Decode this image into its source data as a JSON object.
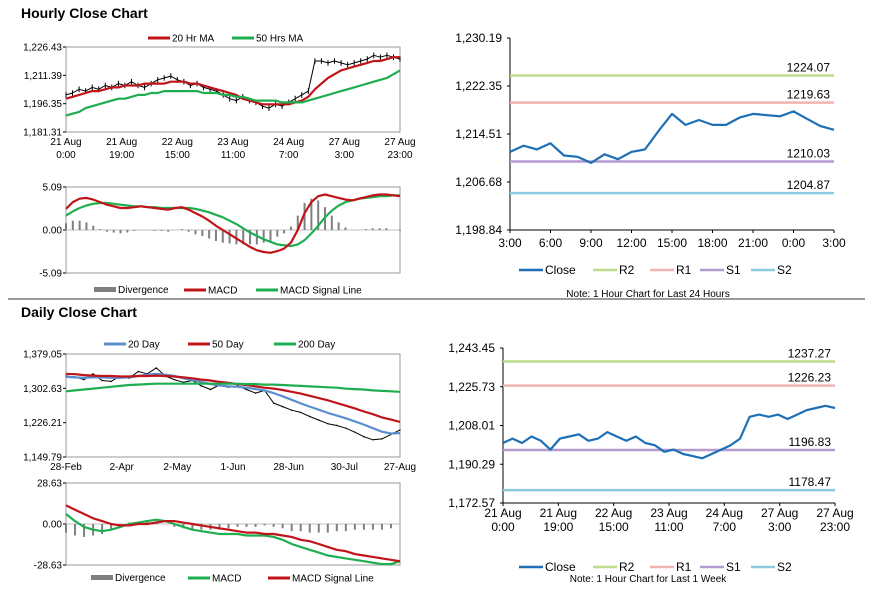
{
  "sections": {
    "hourly_title": "Hourly Close Chart",
    "daily_title": "Daily Close Chart"
  },
  "colors": {
    "ma_short": "#c0141a",
    "ma_long": "#1fae4f",
    "ma_mid": "#5b8fd0",
    "close": "#1f6fb5",
    "r2": "#bcdc8c",
    "r1": "#f1b4b4",
    "s1": "#b59ad0",
    "s2": "#8ccbdf",
    "divergence": "#7f7f7f",
    "price": "#000000"
  },
  "chart_data": [
    {
      "id": "hourly_price",
      "type": "line",
      "legend": [
        "20 Hr MA",
        "50 Hrs MA"
      ],
      "y_ticks": [
        "1,226.43",
        "1,211.39",
        "1,196.35",
        "1,181.31"
      ],
      "ylim": [
        1181.31,
        1226.43
      ],
      "x_labels": [
        [
          "21 Aug",
          "0:00"
        ],
        [
          "21 Aug",
          "19:00"
        ],
        [
          "22 Aug",
          "15:00"
        ],
        [
          "23 Aug",
          "11:00"
        ],
        [
          "24 Aug",
          "7:00"
        ],
        [
          "27 Aug",
          "3:00"
        ],
        [
          "27 Aug",
          "23:00"
        ]
      ],
      "series": [
        {
          "name": "Close",
          "values": [
            1201,
            1202,
            1204,
            1203,
            1205,
            1204,
            1206,
            1205,
            1207,
            1206,
            1208,
            1206,
            1205,
            1207,
            1209,
            1210,
            1211,
            1209,
            1208,
            1206,
            1207,
            1205,
            1204,
            1203,
            1201,
            1199,
            1198,
            1200,
            1198,
            1197,
            1195,
            1194,
            1196,
            1195,
            1197,
            1199,
            1201,
            1203,
            1219,
            1219,
            1218,
            1219,
            1218,
            1217,
            1218,
            1219,
            1220,
            1222,
            1221,
            1222,
            1221,
            1220
          ]
        },
        {
          "name": "20 Hr MA",
          "values": [
            1199,
            1200,
            1201,
            1202,
            1203,
            1203,
            1204,
            1205,
            1205,
            1206,
            1206,
            1206,
            1207,
            1207,
            1207,
            1207,
            1208,
            1208,
            1208,
            1207,
            1207,
            1206,
            1205,
            1204,
            1203,
            1202,
            1201,
            1199,
            1198,
            1197,
            1196,
            1196,
            1196,
            1196,
            1196,
            1197,
            1198,
            1200,
            1204,
            1207,
            1210,
            1212,
            1214,
            1215,
            1216,
            1217,
            1218,
            1219,
            1219,
            1220,
            1221,
            1221
          ]
        },
        {
          "name": "50 Hrs MA",
          "values": [
            1190,
            1191,
            1192,
            1194,
            1195,
            1196,
            1197,
            1198,
            1199,
            1199,
            1200,
            1201,
            1201,
            1202,
            1202,
            1203,
            1203,
            1203,
            1203,
            1203,
            1203,
            1202,
            1202,
            1202,
            1201,
            1201,
            1200,
            1200,
            1199,
            1198,
            1198,
            1198,
            1198,
            1197,
            1197,
            1197,
            1197,
            1198,
            1199,
            1200,
            1201,
            1202,
            1203,
            1204,
            1205,
            1206,
            1207,
            1208,
            1209,
            1210,
            1212,
            1214
          ]
        }
      ]
    },
    {
      "id": "hourly_macd",
      "type": "line",
      "legend": [
        "Divergence",
        "MACD",
        "MACD Signal Line"
      ],
      "y_ticks": [
        "5.09",
        "0.00",
        "-5.09"
      ],
      "ylim": [
        -5.09,
        5.09
      ],
      "series": [
        {
          "name": "MACD",
          "values": [
            2.5,
            3.3,
            3.7,
            3.8,
            3.6,
            3.3,
            3.0,
            2.8,
            2.6,
            2.6,
            2.7,
            2.8,
            2.7,
            2.6,
            2.5,
            2.4,
            2.6,
            2.7,
            2.4,
            2.0,
            1.6,
            1.1,
            0.5,
            0.0,
            -0.5,
            -1.0,
            -1.5,
            -2.0,
            -2.4,
            -2.6,
            -2.7,
            -2.5,
            -2.2,
            -1.5,
            0.0,
            2.0,
            3.3,
            4.0,
            4.2,
            4.0,
            3.8,
            3.6,
            3.5,
            3.7,
            3.9,
            4.1,
            4.2,
            4.2,
            4.1,
            4.0
          ]
        },
        {
          "name": "MACD Signal Line",
          "values": [
            1.7,
            2.2,
            2.6,
            2.9,
            3.1,
            3.2,
            3.2,
            3.1,
            3.0,
            2.9,
            2.8,
            2.8,
            2.7,
            2.7,
            2.6,
            2.6,
            2.6,
            2.6,
            2.6,
            2.5,
            2.3,
            2.1,
            1.8,
            1.5,
            1.1,
            0.7,
            0.2,
            -0.3,
            -0.7,
            -1.1,
            -1.4,
            -1.7,
            -1.8,
            -1.9,
            -1.7,
            -1.2,
            -0.4,
            0.5,
            1.5,
            2.3,
            2.9,
            3.3,
            3.5,
            3.7,
            3.8,
            3.9,
            4.0,
            4.0,
            4.1,
            4.1
          ]
        },
        {
          "name": "Divergence",
          "values": [
            0.8,
            1.1,
            1.1,
            0.9,
            0.5,
            0.1,
            -0.2,
            -0.3,
            -0.4,
            -0.3,
            -0.1,
            0.0,
            0.0,
            -0.1,
            -0.1,
            -0.2,
            0.0,
            0.1,
            -0.2,
            -0.5,
            -0.7,
            -1.0,
            -1.3,
            -1.5,
            -1.6,
            -1.7,
            -1.7,
            -1.7,
            -1.7,
            -1.5,
            -1.3,
            -0.8,
            -0.4,
            0.4,
            1.7,
            3.2,
            3.7,
            3.5,
            2.7,
            1.7,
            0.9,
            0.3,
            0.0,
            0.0,
            0.1,
            0.2,
            0.2,
            0.2,
            0.0,
            -0.1
          ]
        }
      ]
    },
    {
      "id": "hourly_levels",
      "type": "line",
      "y_ticks": [
        "1,230.19",
        "1,222.35",
        "1,214.51",
        "1,206.68",
        "1,198.84"
      ],
      "ylim": [
        1198.84,
        1230.19
      ],
      "x_labels": [
        "3:00",
        "6:00",
        "9:00",
        "12:00",
        "15:00",
        "18:00",
        "21:00",
        "0:00",
        "3:00"
      ],
      "levels": [
        {
          "name": "R2",
          "value": 1224.07,
          "label": "1224.07"
        },
        {
          "name": "R1",
          "value": 1219.63,
          "label": "1219.63"
        },
        {
          "name": "S1",
          "value": 1210.03,
          "label": "1210.03"
        },
        {
          "name": "S2",
          "value": 1204.87,
          "label": "1204.87"
        }
      ],
      "series": [
        {
          "name": "Close",
          "values": [
            1211.6,
            1212.6,
            1212.0,
            1213.0,
            1211.0,
            1210.8,
            1209.8,
            1211.2,
            1210.4,
            1211.6,
            1212.0,
            1215.0,
            1217.8,
            1216.0,
            1216.8,
            1216.0,
            1216.0,
            1217.2,
            1217.8,
            1217.6,
            1217.4,
            1218.2,
            1217.0,
            1215.8,
            1215.2
          ]
        }
      ],
      "legend": [
        "Close",
        "R2",
        "R1",
        "S1",
        "S2"
      ],
      "note": "Note: 1 Hour Chart for Last 24 Hours"
    },
    {
      "id": "daily_price",
      "type": "line",
      "legend": [
        "20 Day",
        "50 Day",
        "200 Day"
      ],
      "y_ticks": [
        "1,379.05",
        "1,302.63",
        "1,226.21",
        "1,149.79"
      ],
      "ylim": [
        1149.79,
        1379.05
      ],
      "x_labels": [
        "28-Feb",
        "2-Apr",
        "2-May",
        "1-Jun",
        "28-Jun",
        "30-Jul",
        "27-Aug"
      ],
      "series": [
        {
          "name": "Close",
          "values": [
            1330,
            1328,
            1322,
            1335,
            1320,
            1318,
            1330,
            1325,
            1340,
            1335,
            1348,
            1330,
            1322,
            1316,
            1320,
            1308,
            1300,
            1310,
            1305,
            1308,
            1300,
            1292,
            1298,
            1270,
            1262,
            1254,
            1249,
            1240,
            1232,
            1224,
            1220,
            1214,
            1205,
            1195,
            1188,
            1190,
            1200,
            1210
          ]
        },
        {
          "name": "20 Day",
          "values": [
            1328,
            1327,
            1326,
            1327,
            1327,
            1326,
            1326,
            1327,
            1330,
            1333,
            1335,
            1333,
            1330,
            1325,
            1321,
            1317,
            1312,
            1309,
            1307,
            1306,
            1304,
            1301,
            1298,
            1292,
            1285,
            1277,
            1269,
            1262,
            1255,
            1248,
            1242,
            1236,
            1229,
            1222,
            1214,
            1206,
            1202,
            1203
          ]
        },
        {
          "name": "50 Day",
          "values": [
            1335,
            1334,
            1332,
            1331,
            1330,
            1330,
            1329,
            1329,
            1330,
            1330,
            1331,
            1330,
            1329,
            1327,
            1325,
            1322,
            1320,
            1317,
            1315,
            1312,
            1310,
            1307,
            1304,
            1302,
            1299,
            1295,
            1291,
            1286,
            1281,
            1276,
            1270,
            1264,
            1258,
            1251,
            1245,
            1238,
            1233,
            1228
          ]
        },
        {
          "name": "200 Day",
          "values": [
            1296,
            1298,
            1300,
            1302,
            1304,
            1306,
            1308,
            1310,
            1311,
            1312,
            1313,
            1313,
            1313,
            1313,
            1313,
            1313,
            1313,
            1313,
            1313,
            1313,
            1312,
            1312,
            1311,
            1311,
            1310,
            1309,
            1308,
            1307,
            1306,
            1305,
            1304,
            1302,
            1301,
            1300,
            1298,
            1297,
            1296,
            1295
          ]
        }
      ]
    },
    {
      "id": "daily_macd",
      "type": "line",
      "legend": [
        "Divergence",
        "MACD",
        "MACD Signal Line"
      ],
      "y_ticks": [
        "28.63",
        "0.00",
        "-28.63"
      ],
      "ylim": [
        -28.63,
        28.63
      ],
      "series": [
        {
          "name": "MACD",
          "values": [
            7,
            2,
            -2,
            -4,
            -5,
            -4,
            -2,
            0,
            1,
            2,
            3,
            2,
            0,
            -2,
            -4,
            -5,
            -6,
            -7,
            -7,
            -7,
            -8,
            -8,
            -8,
            -9,
            -11,
            -14,
            -16,
            -18,
            -20,
            -22,
            -23,
            -24,
            -25,
            -26,
            -27,
            -28,
            -28,
            -26
          ]
        },
        {
          "name": "MACD Signal Line",
          "values": [
            13,
            10,
            7,
            4,
            2,
            0,
            -1,
            -1,
            0,
            0,
            1,
            2,
            2,
            1,
            0,
            -1,
            -2,
            -3,
            -4,
            -5,
            -6,
            -6,
            -7,
            -7,
            -8,
            -9,
            -11,
            -12,
            -14,
            -16,
            -18,
            -19,
            -21,
            -22,
            -23,
            -24,
            -25,
            -26
          ]
        },
        {
          "name": "Divergence",
          "values": [
            -6,
            -8,
            -9,
            -8,
            -7,
            -4,
            -1,
            1,
            1,
            2,
            2,
            0,
            -2,
            -3,
            -4,
            -4,
            -4,
            -4,
            -3,
            -2,
            -2,
            -2,
            -1,
            -2,
            -3,
            -5,
            -5,
            -6,
            -6,
            -6,
            -5,
            -5,
            -4,
            -4,
            -4,
            -4,
            -3,
            0
          ]
        }
      ]
    },
    {
      "id": "daily_levels",
      "type": "line",
      "y_ticks": [
        "1,243.45",
        "1,225.73",
        "1,208.01",
        "1,190.29",
        "1,172.57"
      ],
      "ylim": [
        1172.57,
        1243.45
      ],
      "x_labels": [
        [
          "21 Aug",
          "0:00"
        ],
        [
          "21 Aug",
          "19:00"
        ],
        [
          "22 Aug",
          "15:00"
        ],
        [
          "23 Aug",
          "11:00"
        ],
        [
          "24 Aug",
          "7:00"
        ],
        [
          "27 Aug",
          "3:00"
        ],
        [
          "27 Aug",
          "23:00"
        ]
      ],
      "levels": [
        {
          "name": "R2",
          "value": 1237.27,
          "label": "1237.27"
        },
        {
          "name": "R1",
          "value": 1226.23,
          "label": "1226.23"
        },
        {
          "name": "S1",
          "value": 1196.83,
          "label": "1196.83"
        },
        {
          "name": "S2",
          "value": 1178.47,
          "label": "1178.47"
        }
      ],
      "series": [
        {
          "name": "Close",
          "values": [
            1200,
            1202,
            1200,
            1203,
            1201,
            1197,
            1202,
            1203,
            1204,
            1201,
            1202,
            1205,
            1203,
            1201,
            1203,
            1200,
            1199,
            1196,
            1197,
            1195,
            1194,
            1193,
            1195,
            1197,
            1199,
            1202,
            1212,
            1213,
            1212,
            1213,
            1211,
            1213,
            1215,
            1216,
            1217,
            1216
          ]
        }
      ],
      "legend": [
        "Close",
        "R2",
        "R1",
        "S1",
        "S2"
      ],
      "note": "Note: 1 Hour Chart for Last 1 Week"
    }
  ]
}
